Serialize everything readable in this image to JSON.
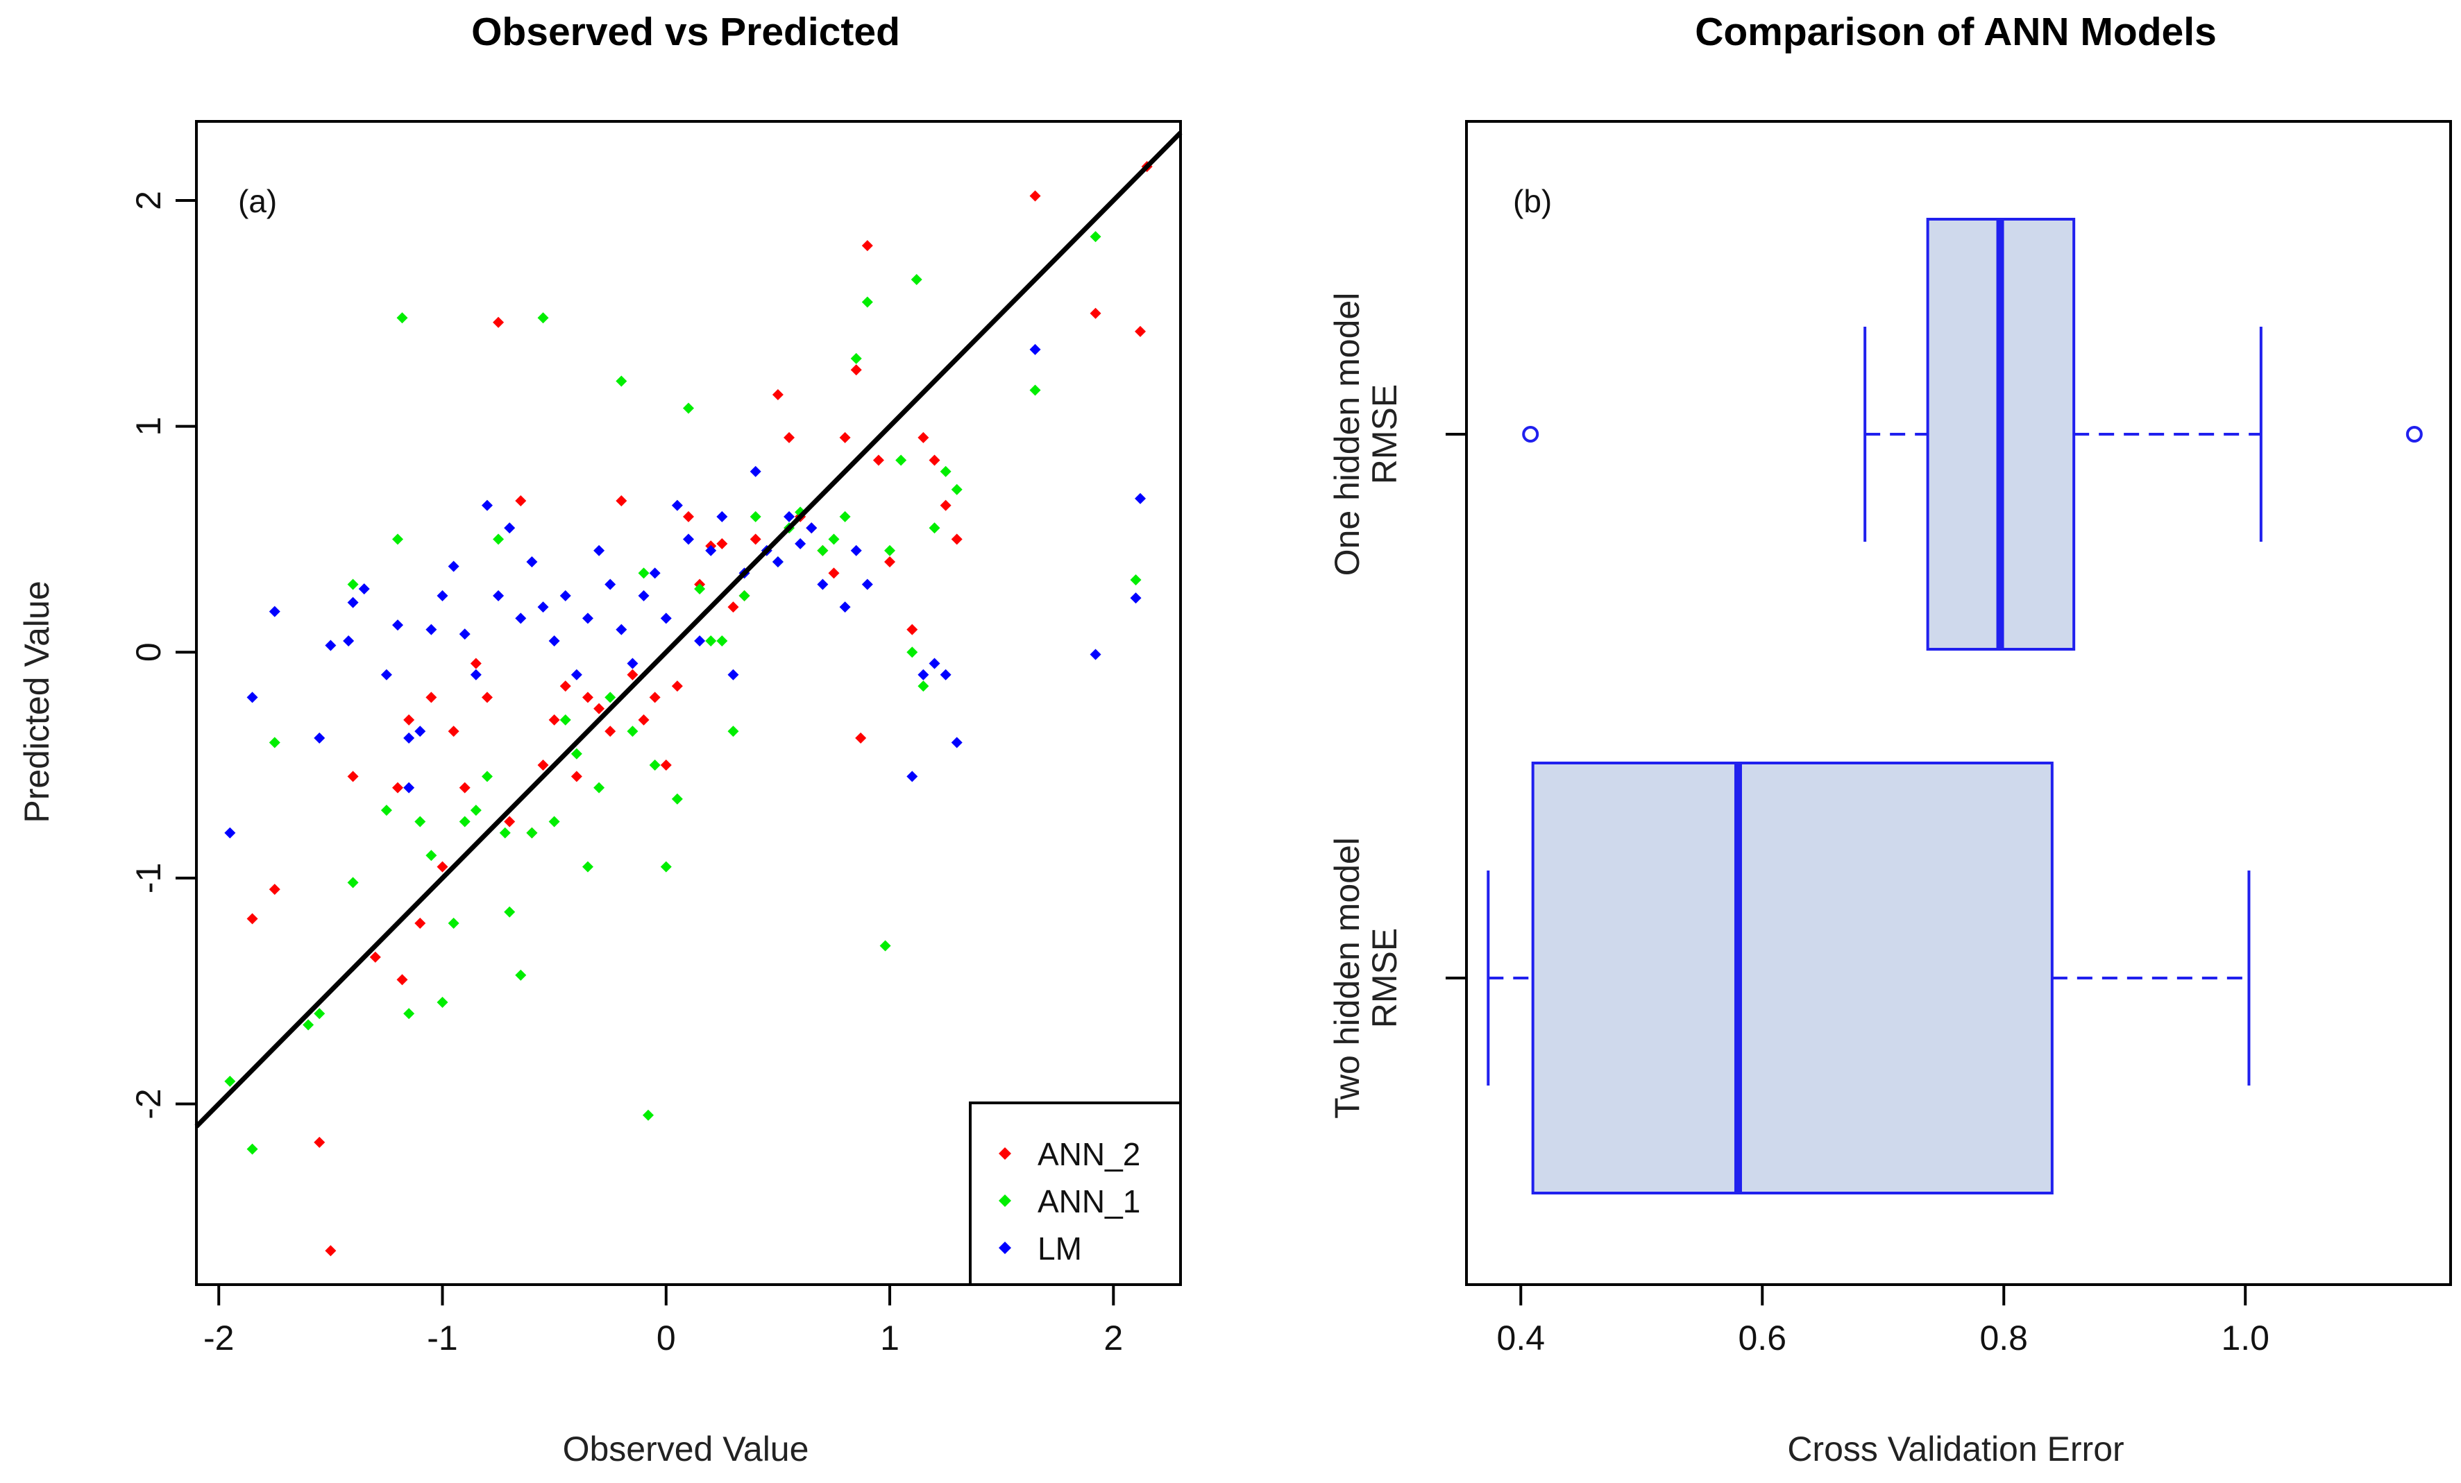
{
  "chart_data": [
    {
      "type": "scatter",
      "title": "Observed vs Predicted",
      "panel_label": "(a)",
      "xlabel": "Observed Value",
      "ylabel": "Predicted Value",
      "xlim": [
        -2.1,
        2.3
      ],
      "ylim": [
        -2.8,
        2.35
      ],
      "xticks": [
        -2,
        -1,
        0,
        1,
        2
      ],
      "yticks": [
        -2,
        -1,
        0,
        1,
        2
      ],
      "xtick_labels": [
        "-2",
        "-1",
        "0",
        "1",
        "2"
      ],
      "ytick_labels": [
        "-2",
        "-1",
        "0",
        "1",
        "2"
      ],
      "reference_line": {
        "slope": 1,
        "intercept": 0,
        "color": "#000000"
      },
      "legend": {
        "position": "bottom-right",
        "entries": [
          "ANN_2",
          "ANN_1",
          "LM"
        ]
      },
      "series": [
        {
          "name": "ANN_2",
          "color": "#ff0000",
          "points": [
            [
              -1.85,
              -1.18
            ],
            [
              -1.75,
              -1.05
            ],
            [
              -1.55,
              -2.17
            ],
            [
              -1.5,
              -2.65
            ],
            [
              -1.4,
              -0.55
            ],
            [
              -1.3,
              -1.35
            ],
            [
              -1.2,
              -0.6
            ],
            [
              -1.18,
              -1.45
            ],
            [
              -1.15,
              -0.3
            ],
            [
              -1.1,
              -1.2
            ],
            [
              -1.05,
              -0.2
            ],
            [
              -1.0,
              -0.95
            ],
            [
              -0.95,
              -0.35
            ],
            [
              -0.9,
              -0.6
            ],
            [
              -0.85,
              -0.05
            ],
            [
              -0.8,
              -0.2
            ],
            [
              -0.75,
              1.46
            ],
            [
              -0.7,
              -0.75
            ],
            [
              -0.65,
              0.67
            ],
            [
              -0.6,
              -0.8
            ],
            [
              -0.55,
              -0.5
            ],
            [
              -0.5,
              -0.3
            ],
            [
              -0.45,
              -0.15
            ],
            [
              -0.4,
              -0.55
            ],
            [
              -0.35,
              -0.2
            ],
            [
              -0.3,
              -0.25
            ],
            [
              -0.25,
              -0.35
            ],
            [
              -0.2,
              0.67
            ],
            [
              -0.15,
              -0.1
            ],
            [
              -0.1,
              -0.3
            ],
            [
              -0.05,
              -0.2
            ],
            [
              0.0,
              -0.5
            ],
            [
              0.05,
              -0.15
            ],
            [
              0.1,
              0.6
            ],
            [
              0.15,
              0.3
            ],
            [
              0.2,
              0.47
            ],
            [
              0.25,
              0.48
            ],
            [
              0.3,
              0.2
            ],
            [
              0.35,
              0.25
            ],
            [
              0.4,
              0.5
            ],
            [
              0.5,
              1.14
            ],
            [
              0.55,
              0.95
            ],
            [
              0.6,
              0.6
            ],
            [
              0.65,
              0.55
            ],
            [
              0.7,
              0.45
            ],
            [
              0.75,
              0.35
            ],
            [
              0.8,
              0.95
            ],
            [
              0.85,
              1.25
            ],
            [
              0.87,
              -0.38
            ],
            [
              0.9,
              1.8
            ],
            [
              0.95,
              0.85
            ],
            [
              1.0,
              0.4
            ],
            [
              1.1,
              0.1
            ],
            [
              1.15,
              0.95
            ],
            [
              1.2,
              0.85
            ],
            [
              1.25,
              0.65
            ],
            [
              1.3,
              0.5
            ],
            [
              1.65,
              2.02
            ],
            [
              1.92,
              1.5
            ],
            [
              2.12,
              1.42
            ],
            [
              2.15,
              2.15
            ]
          ]
        },
        {
          "name": "ANN_1",
          "color": "#00ee00",
          "points": [
            [
              -1.95,
              -1.9
            ],
            [
              -1.85,
              -2.2
            ],
            [
              -1.75,
              -0.4
            ],
            [
              -1.6,
              -1.65
            ],
            [
              -1.55,
              -1.6
            ],
            [
              -1.4,
              0.3
            ],
            [
              -1.4,
              -1.02
            ],
            [
              -1.25,
              -0.7
            ],
            [
              -1.2,
              0.5
            ],
            [
              -1.18,
              1.48
            ],
            [
              -1.15,
              -1.6
            ],
            [
              -1.1,
              -0.75
            ],
            [
              -1.05,
              -0.9
            ],
            [
              -1.0,
              -1.55
            ],
            [
              -0.95,
              -1.2
            ],
            [
              -0.9,
              -0.75
            ],
            [
              -0.85,
              -0.7
            ],
            [
              -0.8,
              -0.55
            ],
            [
              -0.75,
              0.5
            ],
            [
              -0.72,
              -0.8
            ],
            [
              -0.7,
              -1.15
            ],
            [
              -0.65,
              -1.43
            ],
            [
              -0.6,
              -0.8
            ],
            [
              -0.55,
              1.48
            ],
            [
              -0.5,
              -0.75
            ],
            [
              -0.45,
              -0.3
            ],
            [
              -0.4,
              -0.45
            ],
            [
              -0.35,
              -0.95
            ],
            [
              -0.3,
              -0.6
            ],
            [
              -0.25,
              -0.2
            ],
            [
              -0.2,
              1.2
            ],
            [
              -0.15,
              -0.35
            ],
            [
              -0.1,
              0.35
            ],
            [
              -0.08,
              -2.05
            ],
            [
              -0.05,
              -0.5
            ],
            [
              0.0,
              -0.95
            ],
            [
              0.05,
              -0.65
            ],
            [
              0.1,
              1.08
            ],
            [
              0.15,
              0.28
            ],
            [
              0.2,
              0.05
            ],
            [
              0.25,
              0.05
            ],
            [
              0.3,
              -0.35
            ],
            [
              0.35,
              0.25
            ],
            [
              0.4,
              0.6
            ],
            [
              0.5,
              0.4
            ],
            [
              0.55,
              0.55
            ],
            [
              0.6,
              0.62
            ],
            [
              0.7,
              0.45
            ],
            [
              0.75,
              0.5
            ],
            [
              0.8,
              0.6
            ],
            [
              0.85,
              1.3
            ],
            [
              0.9,
              1.55
            ],
            [
              0.98,
              -1.3
            ],
            [
              1.0,
              0.45
            ],
            [
              1.05,
              0.85
            ],
            [
              1.1,
              0.0
            ],
            [
              1.12,
              1.65
            ],
            [
              1.15,
              -0.15
            ],
            [
              1.2,
              0.55
            ],
            [
              1.25,
              0.8
            ],
            [
              1.3,
              0.72
            ],
            [
              1.65,
              1.16
            ],
            [
              1.92,
              1.84
            ],
            [
              2.1,
              0.32
            ]
          ]
        },
        {
          "name": "LM",
          "color": "#0000ff",
          "points": [
            [
              -1.95,
              -0.8
            ],
            [
              -1.85,
              -0.2
            ],
            [
              -1.75,
              0.18
            ],
            [
              -1.55,
              -0.38
            ],
            [
              -1.5,
              0.03
            ],
            [
              -1.42,
              0.05
            ],
            [
              -1.4,
              0.22
            ],
            [
              -1.35,
              0.28
            ],
            [
              -1.25,
              -0.1
            ],
            [
              -1.2,
              0.12
            ],
            [
              -1.15,
              -0.6
            ],
            [
              -1.15,
              -0.38
            ],
            [
              -1.1,
              -0.35
            ],
            [
              -1.05,
              0.1
            ],
            [
              -1.0,
              0.25
            ],
            [
              -0.95,
              0.38
            ],
            [
              -0.9,
              0.08
            ],
            [
              -0.85,
              -0.1
            ],
            [
              -0.8,
              0.65
            ],
            [
              -0.75,
              0.25
            ],
            [
              -0.7,
              0.55
            ],
            [
              -0.65,
              0.15
            ],
            [
              -0.6,
              0.4
            ],
            [
              -0.55,
              0.2
            ],
            [
              -0.5,
              0.05
            ],
            [
              -0.45,
              0.25
            ],
            [
              -0.4,
              -0.1
            ],
            [
              -0.35,
              0.15
            ],
            [
              -0.3,
              0.45
            ],
            [
              -0.25,
              0.3
            ],
            [
              -0.2,
              0.1
            ],
            [
              -0.15,
              -0.05
            ],
            [
              -0.1,
              0.25
            ],
            [
              -0.05,
              0.35
            ],
            [
              0.0,
              0.15
            ],
            [
              0.05,
              0.65
            ],
            [
              0.1,
              0.5
            ],
            [
              0.15,
              0.05
            ],
            [
              0.2,
              0.45
            ],
            [
              0.25,
              0.6
            ],
            [
              0.3,
              -0.1
            ],
            [
              0.35,
              0.35
            ],
            [
              0.4,
              0.8
            ],
            [
              0.45,
              0.45
            ],
            [
              0.5,
              0.4
            ],
            [
              0.55,
              0.6
            ],
            [
              0.6,
              0.48
            ],
            [
              0.65,
              0.55
            ],
            [
              0.7,
              0.3
            ],
            [
              0.8,
              0.2
            ],
            [
              0.85,
              0.45
            ],
            [
              0.9,
              0.3
            ],
            [
              1.1,
              -0.55
            ],
            [
              1.15,
              -0.1
            ],
            [
              1.2,
              -0.05
            ],
            [
              1.25,
              -0.1
            ],
            [
              1.3,
              -0.4
            ],
            [
              1.65,
              1.34
            ],
            [
              1.92,
              -0.01
            ],
            [
              2.12,
              0.68
            ],
            [
              2.1,
              0.24
            ]
          ]
        }
      ]
    },
    {
      "type": "boxplot",
      "title": "Comparison of ANN Models",
      "panel_label": "(b)",
      "xlabel": "Cross Validation Error",
      "xlim": [
        0.355,
        1.17
      ],
      "xticks": [
        0.4,
        0.6,
        0.8,
        1.0
      ],
      "xtick_labels": [
        "0.4",
        "0.6",
        "0.8",
        "1.0"
      ],
      "color": "#2020ee",
      "fill": "#cfd9ec",
      "boxes": [
        {
          "label_line1": "One hidden model",
          "label_line2": "RMSE",
          "whisker_low": 0.685,
          "q1": 0.737,
          "median": 0.797,
          "q3": 0.858,
          "whisker_high": 1.013,
          "outliers": [
            0.408,
            1.14
          ]
        },
        {
          "label_line1": "Two hidden model",
          "label_line2": "RMSE",
          "whisker_low": 0.373,
          "q1": 0.41,
          "median": 0.58,
          "q3": 0.84,
          "whisker_high": 1.003,
          "outliers": []
        }
      ]
    }
  ]
}
